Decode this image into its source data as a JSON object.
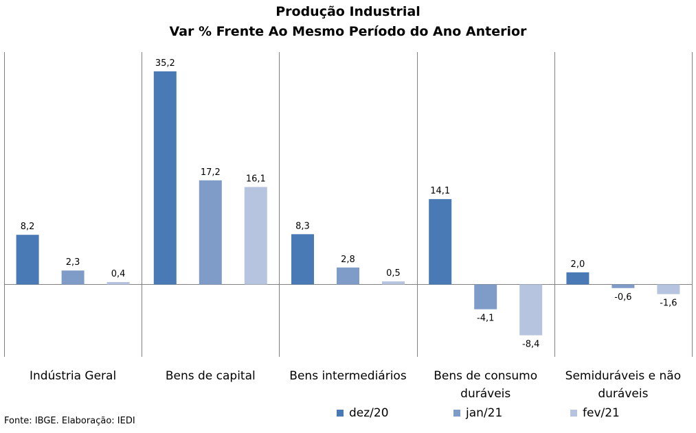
{
  "colors": {
    "series": [
      "#4a7ab5",
      "#7f9cc9",
      "#b6c4e0"
    ],
    "axis": "#808080"
  },
  "chart_data": {
    "type": "bar",
    "title": "Produção Industrial",
    "subtitle": "Var % Frente Ao Mesmo Período do Ano Anterior",
    "categories": [
      "Indústria Geral",
      "Bens de capital",
      "Bens intermediários",
      "Bens de consumo duráveis",
      "Semiduráveis e não duráveis"
    ],
    "category_lines": [
      [
        "Indústria Geral"
      ],
      [
        "Bens de capital"
      ],
      [
        "Bens intermediários"
      ],
      [
        "Bens de consumo",
        "duráveis"
      ],
      [
        "Semiduráveis e não",
        "duráveis"
      ]
    ],
    "series": [
      {
        "name": "dez/20",
        "values": [
          8.2,
          35.2,
          8.3,
          14.1,
          2.0
        ],
        "labels": [
          "8,2",
          "35,2",
          "8,3",
          "14,1",
          "2,0"
        ]
      },
      {
        "name": "jan/21",
        "values": [
          2.3,
          17.2,
          2.8,
          -4.1,
          -0.6
        ],
        "labels": [
          "2,3",
          "17,2",
          "2,8",
          "-4,1",
          "-0,6"
        ]
      },
      {
        "name": "fev/21",
        "values": [
          0.4,
          16.1,
          0.5,
          -8.4,
          -1.6
        ],
        "labels": [
          "0,4",
          "16,1",
          "0,5",
          "-8,4",
          "-1,6"
        ]
      }
    ],
    "ylim": [
      -12,
      38.5
    ],
    "grid": false,
    "legend": "bottom-right"
  },
  "source": "Fonte: IBGE. Elaboração: IEDI"
}
